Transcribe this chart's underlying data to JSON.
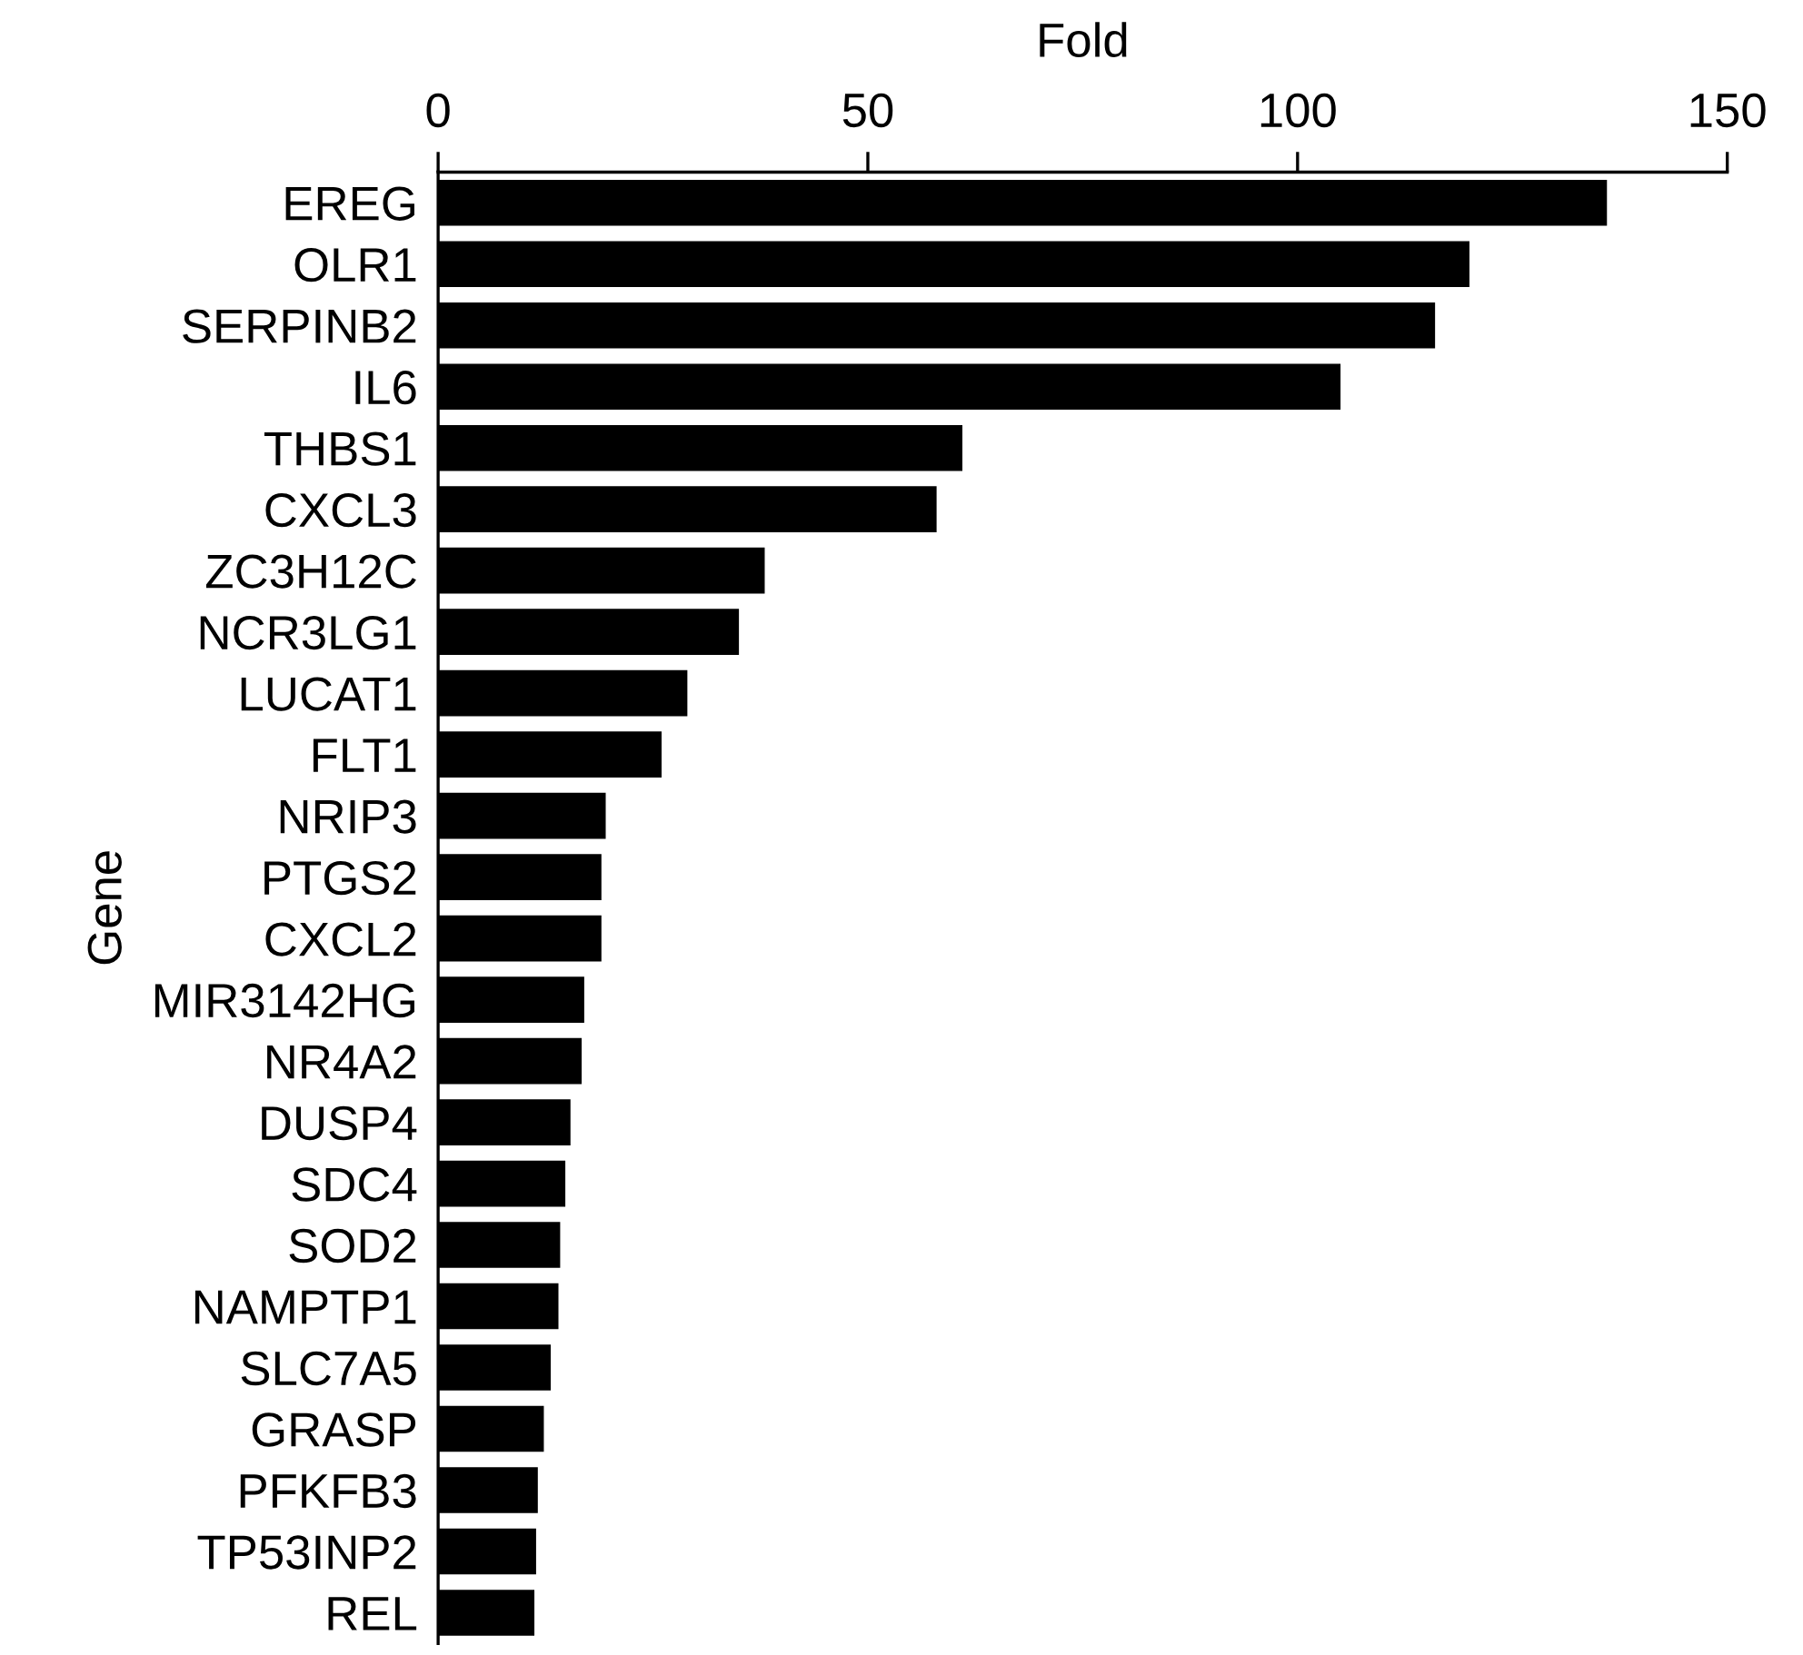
{
  "chart_data": {
    "type": "bar",
    "orientation": "horizontal",
    "xlabel": "Fold",
    "ylabel": "Gene",
    "categories": [
      "EREG",
      "OLR1",
      "SERPINB2",
      "IL6",
      "THBS1",
      "CXCL3",
      "ZC3H12C",
      "NCR3LG1",
      "LUCAT1",
      "FLT1",
      "NRIP3",
      "PTGS2",
      "CXCL2",
      "MIR3142HG",
      "NR4A2",
      "DUSP4",
      "SDC4",
      "SOD2",
      "NAMPTP1",
      "SLC7A5",
      "GRASP",
      "PFKFB3",
      "TP53INP2",
      "REL"
    ],
    "values": [
      136,
      120,
      116,
      105,
      61,
      58,
      38,
      35,
      29,
      26,
      19.5,
      19,
      19,
      17,
      16.7,
      15.4,
      14.8,
      14.2,
      14,
      13.1,
      12.3,
      11.6,
      11.4,
      11.2
    ],
    "color": "#000000",
    "xlim": [
      0,
      150
    ],
    "xticks": [
      0,
      50,
      100,
      150
    ],
    "grid": false,
    "legend": false
  }
}
